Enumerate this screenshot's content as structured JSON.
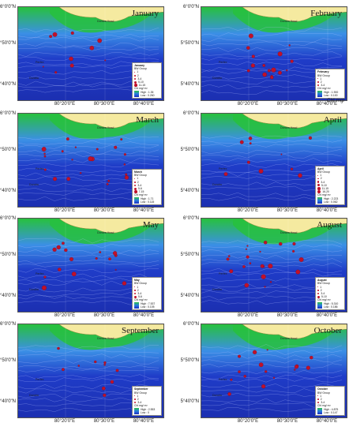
{
  "months": [
    {
      "name": "January",
      "id": "january",
      "legend": {
        "title": "January",
        "subtitle": "BW Group",
        "classes": [
          "1",
          "2",
          "3-4",
          "5-10",
          "11-15"
        ],
        "chl_title": "Chl mg/ m³",
        "high": "High : 1.35",
        "low": "Low : 0.260"
      }
    },
    {
      "name": "February",
      "id": "february",
      "legend": {
        "title": "February",
        "subtitle": "BW Group",
        "classes": [
          "1",
          "2",
          "3-4"
        ],
        "chl_title": "Chl mg/ m³",
        "high": "High : 1.900",
        "low": "Low : 0.100"
      }
    },
    {
      "name": "March",
      "id": "march",
      "legend": {
        "title": "March",
        "subtitle": "BW Group",
        "classes": [
          "1",
          "2",
          "3-4",
          "5-6",
          "7-15"
        ],
        "chl_title": "Chl mg/ m³",
        "high": "High : 1.71",
        "low": "Low : 0.115"
      }
    },
    {
      "name": "April",
      "id": "april",
      "legend": {
        "title": "April",
        "subtitle": "BW Group",
        "classes": [
          "1",
          "2",
          "3-4",
          "5-10",
          "11-15",
          "16-20"
        ],
        "chl_title": "Chl mg/ m³",
        "high": "High : 2.223",
        "low": "Low : 0.062"
      }
    },
    {
      "name": "May",
      "id": "may",
      "legend": {
        "title": "May",
        "subtitle": "BW Group",
        "classes": [
          "1",
          "2",
          "3-4",
          "5-6"
        ],
        "chl_title": "Chl mg/ m³",
        "high": "High : 7.537",
        "low": "Low : 0.105"
      }
    },
    {
      "name": "August",
      "id": "august",
      "legend": {
        "title": "August",
        "subtitle": "BW Group",
        "classes": [
          "1",
          "2",
          "3-4",
          "5-10"
        ],
        "chl_title": "Chl mg/ m³",
        "high": "High : 5.310",
        "low": "Low : 0.186"
      }
    },
    {
      "name": "September",
      "id": "september",
      "legend": {
        "title": "September",
        "subtitle": "BW Group",
        "classes": [
          "1",
          "2",
          "3-4"
        ],
        "chl_title": "Chl mg/ m³",
        "high": "High : 2.553",
        "low": "Low : 0"
      }
    },
    {
      "name": "October",
      "id": "october",
      "legend": {
        "title": "October",
        "subtitle": "BW Group",
        "classes": [
          "1",
          "2",
          "3-4"
        ],
        "chl_title": "Chl mg/ m³",
        "high": "High : 4.875",
        "low": "Low : 0.147"
      }
    }
  ],
  "lat_labels": [
    "6°0'0\"N",
    "5°50'0\"N",
    "5°40'0\"N"
  ],
  "lon_labels": [
    "80°20'0\"E",
    "80°30'0\"E",
    "80°40'0\"E"
  ],
  "unit_label": "Chl mg/",
  "places": {
    "town": "Dondra Head",
    "canyon1": "Perfex",
    "canyon2": "Dondra"
  },
  "colors": {
    "land": "#f5eaa0",
    "high_chl": "#27c13d",
    "mid_chl": "#3b8fe6",
    "low_chl": "#1f3cc8",
    "deep": "#1c2fb0",
    "dot": "#c0102a"
  }
}
